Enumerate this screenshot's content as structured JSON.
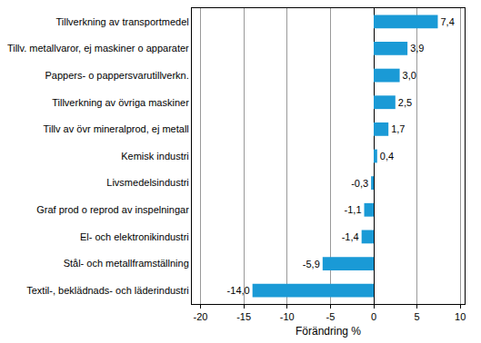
{
  "chart_data": {
    "type": "bar",
    "orientation": "horizontal",
    "categories": [
      "Tillverkning av transportmedel",
      "Tillv. metallvaror, ej maskiner o apparater",
      "Pappers- o pappersvarutillverkn.",
      "Tillverkning av övriga maskiner",
      "Tillv av övr mineralprod, ej metall",
      "Kemisk industri",
      "Livsmedelsindustri",
      "Graf prod o reprod av inspelningar",
      "El- och elektronikindustri",
      "Stål- och metallframställning",
      "Textil-, beklädnads- och läderindustri"
    ],
    "values": [
      7.4,
      3.9,
      3.0,
      2.5,
      1.7,
      0.4,
      -0.3,
      -1.1,
      -1.4,
      -5.9,
      -14.0
    ],
    "value_labels": [
      "7,4",
      "3,9",
      "3,0",
      "2,5",
      "1,7",
      "0,4",
      "-0,3",
      "-1,1",
      "-1,4",
      "-5,9",
      "-14,0"
    ],
    "data_labels": true,
    "color": "#1a9ad6",
    "xlabel": "Förändring %",
    "xlim": [
      -21,
      10.5
    ],
    "xticks": [
      -20,
      -15,
      -10,
      -5,
      0,
      5,
      10
    ],
    "grid": true
  }
}
